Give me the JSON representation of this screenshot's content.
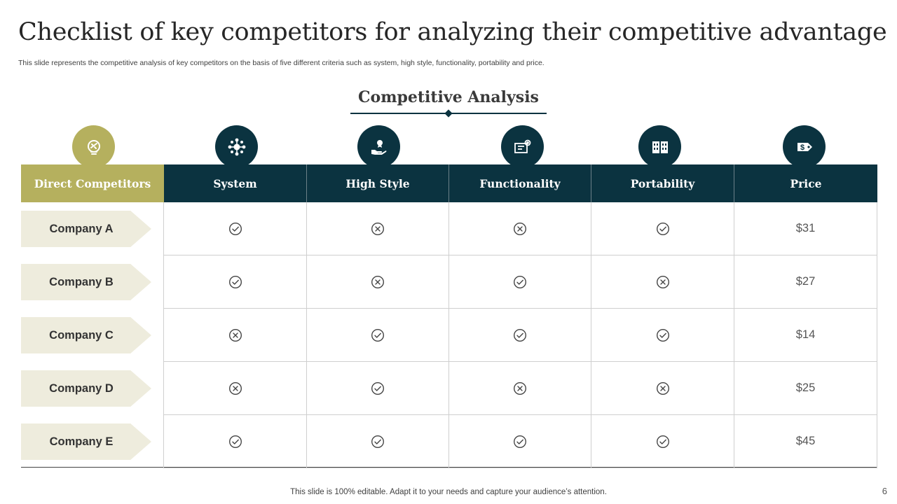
{
  "slide": {
    "title": "Checklist of key competitors for analyzing their competitive advantage",
    "subtitle": "This slide represents the competitive analysis of key competitors on the basis of five  different criteria such as system, high style, functionality, portability and price.",
    "section_title": "Competitive Analysis",
    "footer": "This slide is 100% editable. Adapt it to your needs and capture your audience’s attention.",
    "page_number": "6"
  },
  "colors": {
    "accent_olive": "#b5b05e",
    "header_dark_teal": "#0b3340",
    "company_tag_bg": "#eeecdd"
  },
  "table": {
    "columns": [
      {
        "label": "Direct Competitors",
        "icon": "lightbulb-puzzle-icon"
      },
      {
        "label": "System",
        "icon": "network-gear-icon"
      },
      {
        "label": "High Style",
        "icon": "hand-award-icon"
      },
      {
        "label": "Functionality",
        "icon": "blueprint-gear-icon"
      },
      {
        "label": "Portability",
        "icon": "buildings-icon"
      },
      {
        "label": "Price",
        "icon": "price-tag-icon"
      }
    ],
    "rows": [
      {
        "company": "Company A",
        "system": "check",
        "high_style": "cross",
        "functionality": "cross",
        "portability": "check",
        "price": "$31"
      },
      {
        "company": "Company B",
        "system": "check",
        "high_style": "cross",
        "functionality": "check",
        "portability": "cross",
        "price": "$27"
      },
      {
        "company": "Company C",
        "system": "cross",
        "high_style": "check",
        "functionality": "check",
        "portability": "check",
        "price": "$14"
      },
      {
        "company": "Company D",
        "system": "cross",
        "high_style": "check",
        "functionality": "cross",
        "portability": "cross",
        "price": "$25"
      },
      {
        "company": "Company E",
        "system": "check",
        "high_style": "check",
        "functionality": "check",
        "portability": "check",
        "price": "$45"
      }
    ]
  }
}
